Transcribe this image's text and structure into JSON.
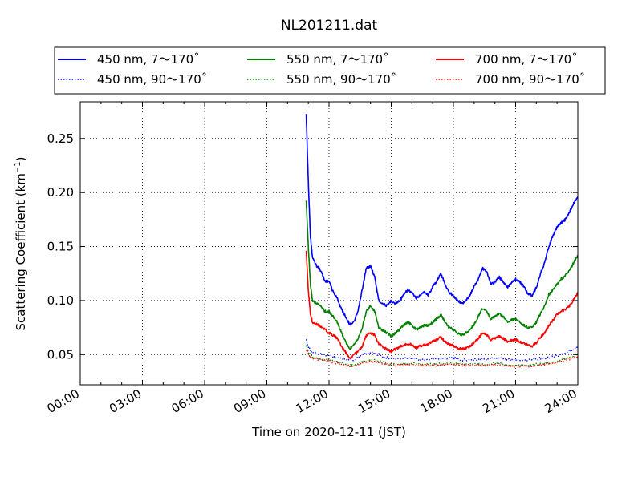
{
  "chart_data": {
    "type": "line",
    "title": "NL201211.dat",
    "xlabel": "Time on 2020-12-11 (JST)",
    "ylabel_main": "Scattering Coefficient (km",
    "ylabel_exp": "−1",
    "ylabel_close": ")",
    "xlim": [
      0,
      24
    ],
    "ylim": [
      0.022,
      0.284
    ],
    "grid": true,
    "legend_position": "top",
    "x_ticks": [
      0,
      3,
      6,
      9,
      12,
      15,
      18,
      21,
      24
    ],
    "x_tick_labels": [
      "00:00",
      "03:00",
      "06:00",
      "09:00",
      "12:00",
      "15:00",
      "18:00",
      "21:00",
      "24:00"
    ],
    "y_ticks": [
      0.05,
      0.1,
      0.15,
      0.2,
      0.25
    ],
    "y_tick_labels": [
      "0.05",
      "0.10",
      "0.15",
      "0.20",
      "0.25"
    ],
    "series": [
      {
        "name": "450 nm, 7～170˚",
        "color": "#0000ff",
        "style": "solid",
        "x": [
          10.9,
          11.0,
          11.1,
          11.2,
          11.4,
          11.6,
          11.8,
          12.0,
          12.2,
          12.4,
          12.6,
          12.8,
          13.0,
          13.2,
          13.4,
          13.6,
          13.8,
          14.0,
          14.2,
          14.4,
          14.6,
          14.8,
          15.0,
          15.2,
          15.4,
          15.6,
          15.8,
          16.0,
          16.2,
          16.4,
          16.6,
          16.8,
          17.0,
          17.2,
          17.4,
          17.6,
          17.8,
          18.0,
          18.2,
          18.4,
          18.6,
          18.8,
          19.0,
          19.2,
          19.4,
          19.6,
          19.8,
          20.0,
          20.2,
          20.4,
          20.6,
          20.8,
          21.0,
          21.2,
          21.4,
          21.6,
          21.8,
          22.0,
          22.2,
          22.4,
          22.6,
          22.8,
          23.0,
          23.2,
          23.4,
          23.6,
          23.8,
          24.0
        ],
        "y": [
          0.272,
          0.21,
          0.16,
          0.14,
          0.132,
          0.128,
          0.118,
          0.118,
          0.108,
          0.102,
          0.092,
          0.085,
          0.078,
          0.08,
          0.09,
          0.11,
          0.13,
          0.132,
          0.122,
          0.1,
          0.097,
          0.095,
          0.1,
          0.097,
          0.1,
          0.105,
          0.11,
          0.107,
          0.102,
          0.105,
          0.108,
          0.105,
          0.113,
          0.118,
          0.125,
          0.115,
          0.107,
          0.105,
          0.1,
          0.097,
          0.1,
          0.105,
          0.113,
          0.12,
          0.13,
          0.127,
          0.115,
          0.117,
          0.122,
          0.117,
          0.112,
          0.117,
          0.12,
          0.117,
          0.113,
          0.106,
          0.105,
          0.112,
          0.125,
          0.135,
          0.15,
          0.16,
          0.168,
          0.172,
          0.175,
          0.182,
          0.19,
          0.196
        ]
      },
      {
        "name": "450 nm, 90～170˚",
        "color": "#0000ff",
        "style": "dotted",
        "x": [
          10.9,
          11.0,
          11.2,
          11.6,
          12.0,
          12.4,
          12.8,
          13.2,
          13.6,
          14.0,
          14.4,
          14.8,
          15.2,
          15.6,
          16.0,
          16.4,
          16.8,
          17.2,
          17.6,
          18.0,
          18.4,
          18.8,
          19.2,
          19.6,
          20.0,
          20.4,
          20.8,
          21.2,
          21.6,
          22.0,
          22.4,
          22.8,
          23.2,
          23.6,
          24.0
        ],
        "y": [
          0.063,
          0.057,
          0.052,
          0.05,
          0.049,
          0.047,
          0.046,
          0.045,
          0.05,
          0.052,
          0.05,
          0.047,
          0.046,
          0.046,
          0.047,
          0.045,
          0.046,
          0.046,
          0.047,
          0.047,
          0.045,
          0.045,
          0.046,
          0.046,
          0.047,
          0.046,
          0.045,
          0.045,
          0.045,
          0.046,
          0.047,
          0.048,
          0.05,
          0.053,
          0.057
        ]
      },
      {
        "name": "550 nm, 7～170˚",
        "color": "#008000",
        "style": "solid",
        "x": [
          10.9,
          11.0,
          11.1,
          11.2,
          11.4,
          11.6,
          11.8,
          12.0,
          12.2,
          12.4,
          12.6,
          12.8,
          13.0,
          13.2,
          13.4,
          13.6,
          13.8,
          14.0,
          14.2,
          14.4,
          14.6,
          14.8,
          15.0,
          15.2,
          15.4,
          15.6,
          15.8,
          16.0,
          16.2,
          16.4,
          16.6,
          16.8,
          17.0,
          17.2,
          17.4,
          17.6,
          17.8,
          18.0,
          18.2,
          18.4,
          18.6,
          18.8,
          19.0,
          19.2,
          19.4,
          19.6,
          19.8,
          20.0,
          20.2,
          20.4,
          20.6,
          20.8,
          21.0,
          21.2,
          21.4,
          21.6,
          21.8,
          22.0,
          22.2,
          22.4,
          22.6,
          22.8,
          23.0,
          23.2,
          23.4,
          23.6,
          23.8,
          24.0
        ],
        "y": [
          0.192,
          0.15,
          0.115,
          0.1,
          0.097,
          0.095,
          0.09,
          0.09,
          0.085,
          0.08,
          0.07,
          0.062,
          0.055,
          0.06,
          0.065,
          0.075,
          0.09,
          0.095,
          0.09,
          0.075,
          0.072,
          0.07,
          0.067,
          0.07,
          0.073,
          0.077,
          0.08,
          0.077,
          0.073,
          0.075,
          0.077,
          0.077,
          0.08,
          0.083,
          0.087,
          0.08,
          0.075,
          0.073,
          0.07,
          0.068,
          0.07,
          0.073,
          0.078,
          0.085,
          0.093,
          0.09,
          0.083,
          0.085,
          0.088,
          0.085,
          0.08,
          0.082,
          0.083,
          0.08,
          0.077,
          0.075,
          0.075,
          0.08,
          0.088,
          0.095,
          0.105,
          0.11,
          0.115,
          0.12,
          0.123,
          0.128,
          0.135,
          0.142
        ]
      },
      {
        "name": "550 nm, 90～170˚",
        "color": "#008000",
        "style": "dotted",
        "x": [
          10.9,
          11.0,
          11.2,
          11.6,
          12.0,
          12.4,
          12.8,
          13.2,
          13.6,
          14.0,
          14.4,
          14.8,
          15.2,
          15.6,
          16.0,
          16.4,
          16.8,
          17.2,
          17.6,
          18.0,
          18.4,
          18.8,
          19.2,
          19.6,
          20.0,
          20.4,
          20.8,
          21.2,
          21.6,
          22.0,
          22.4,
          22.8,
          23.2,
          23.6,
          24.0
        ],
        "y": [
          0.058,
          0.052,
          0.048,
          0.046,
          0.045,
          0.043,
          0.041,
          0.04,
          0.043,
          0.045,
          0.044,
          0.042,
          0.041,
          0.041,
          0.042,
          0.041,
          0.041,
          0.041,
          0.042,
          0.042,
          0.041,
          0.041,
          0.041,
          0.041,
          0.042,
          0.041,
          0.04,
          0.04,
          0.04,
          0.041,
          0.042,
          0.043,
          0.045,
          0.047,
          0.05
        ]
      },
      {
        "name": "700 nm, 7～170˚",
        "color": "#ff0000",
        "style": "solid",
        "x": [
          10.9,
          11.0,
          11.1,
          11.2,
          11.4,
          11.6,
          11.8,
          12.0,
          12.2,
          12.4,
          12.6,
          12.8,
          13.0,
          13.2,
          13.4,
          13.6,
          13.8,
          14.0,
          14.2,
          14.4,
          14.6,
          14.8,
          15.0,
          15.2,
          15.4,
          15.6,
          15.8,
          16.0,
          16.2,
          16.4,
          16.6,
          16.8,
          17.0,
          17.2,
          17.4,
          17.6,
          17.8,
          18.0,
          18.2,
          18.4,
          18.6,
          18.8,
          19.0,
          19.2,
          19.4,
          19.6,
          19.8,
          20.0,
          20.2,
          20.4,
          20.6,
          20.8,
          21.0,
          21.2,
          21.4,
          21.6,
          21.8,
          22.0,
          22.2,
          22.4,
          22.6,
          22.8,
          23.0,
          23.2,
          23.4,
          23.6,
          23.8,
          24.0
        ],
        "y": [
          0.145,
          0.11,
          0.088,
          0.08,
          0.078,
          0.076,
          0.073,
          0.07,
          0.068,
          0.065,
          0.058,
          0.052,
          0.046,
          0.05,
          0.053,
          0.058,
          0.068,
          0.07,
          0.068,
          0.06,
          0.057,
          0.055,
          0.053,
          0.055,
          0.057,
          0.059,
          0.06,
          0.059,
          0.056,
          0.058,
          0.059,
          0.06,
          0.062,
          0.064,
          0.066,
          0.062,
          0.059,
          0.058,
          0.056,
          0.055,
          0.056,
          0.058,
          0.061,
          0.065,
          0.07,
          0.068,
          0.064,
          0.065,
          0.067,
          0.065,
          0.062,
          0.063,
          0.064,
          0.062,
          0.06,
          0.059,
          0.058,
          0.061,
          0.066,
          0.07,
          0.077,
          0.082,
          0.087,
          0.09,
          0.092,
          0.095,
          0.101,
          0.107
        ]
      },
      {
        "name": "700 nm, 90～170˚",
        "color": "#ff0000",
        "style": "dotted",
        "x": [
          10.9,
          11.0,
          11.2,
          11.6,
          12.0,
          12.4,
          12.8,
          13.2,
          13.6,
          14.0,
          14.4,
          14.8,
          15.2,
          15.6,
          16.0,
          16.4,
          16.8,
          17.2,
          17.6,
          18.0,
          18.4,
          18.8,
          19.2,
          19.6,
          20.0,
          20.4,
          20.8,
          21.2,
          21.6,
          22.0,
          22.4,
          22.8,
          23.2,
          23.6,
          24.0
        ],
        "y": [
          0.055,
          0.05,
          0.047,
          0.045,
          0.044,
          0.042,
          0.04,
          0.039,
          0.042,
          0.044,
          0.043,
          0.041,
          0.04,
          0.04,
          0.041,
          0.04,
          0.04,
          0.04,
          0.041,
          0.041,
          0.04,
          0.04,
          0.04,
          0.04,
          0.041,
          0.04,
          0.039,
          0.039,
          0.039,
          0.04,
          0.041,
          0.042,
          0.044,
          0.046,
          0.048
        ]
      }
    ]
  }
}
